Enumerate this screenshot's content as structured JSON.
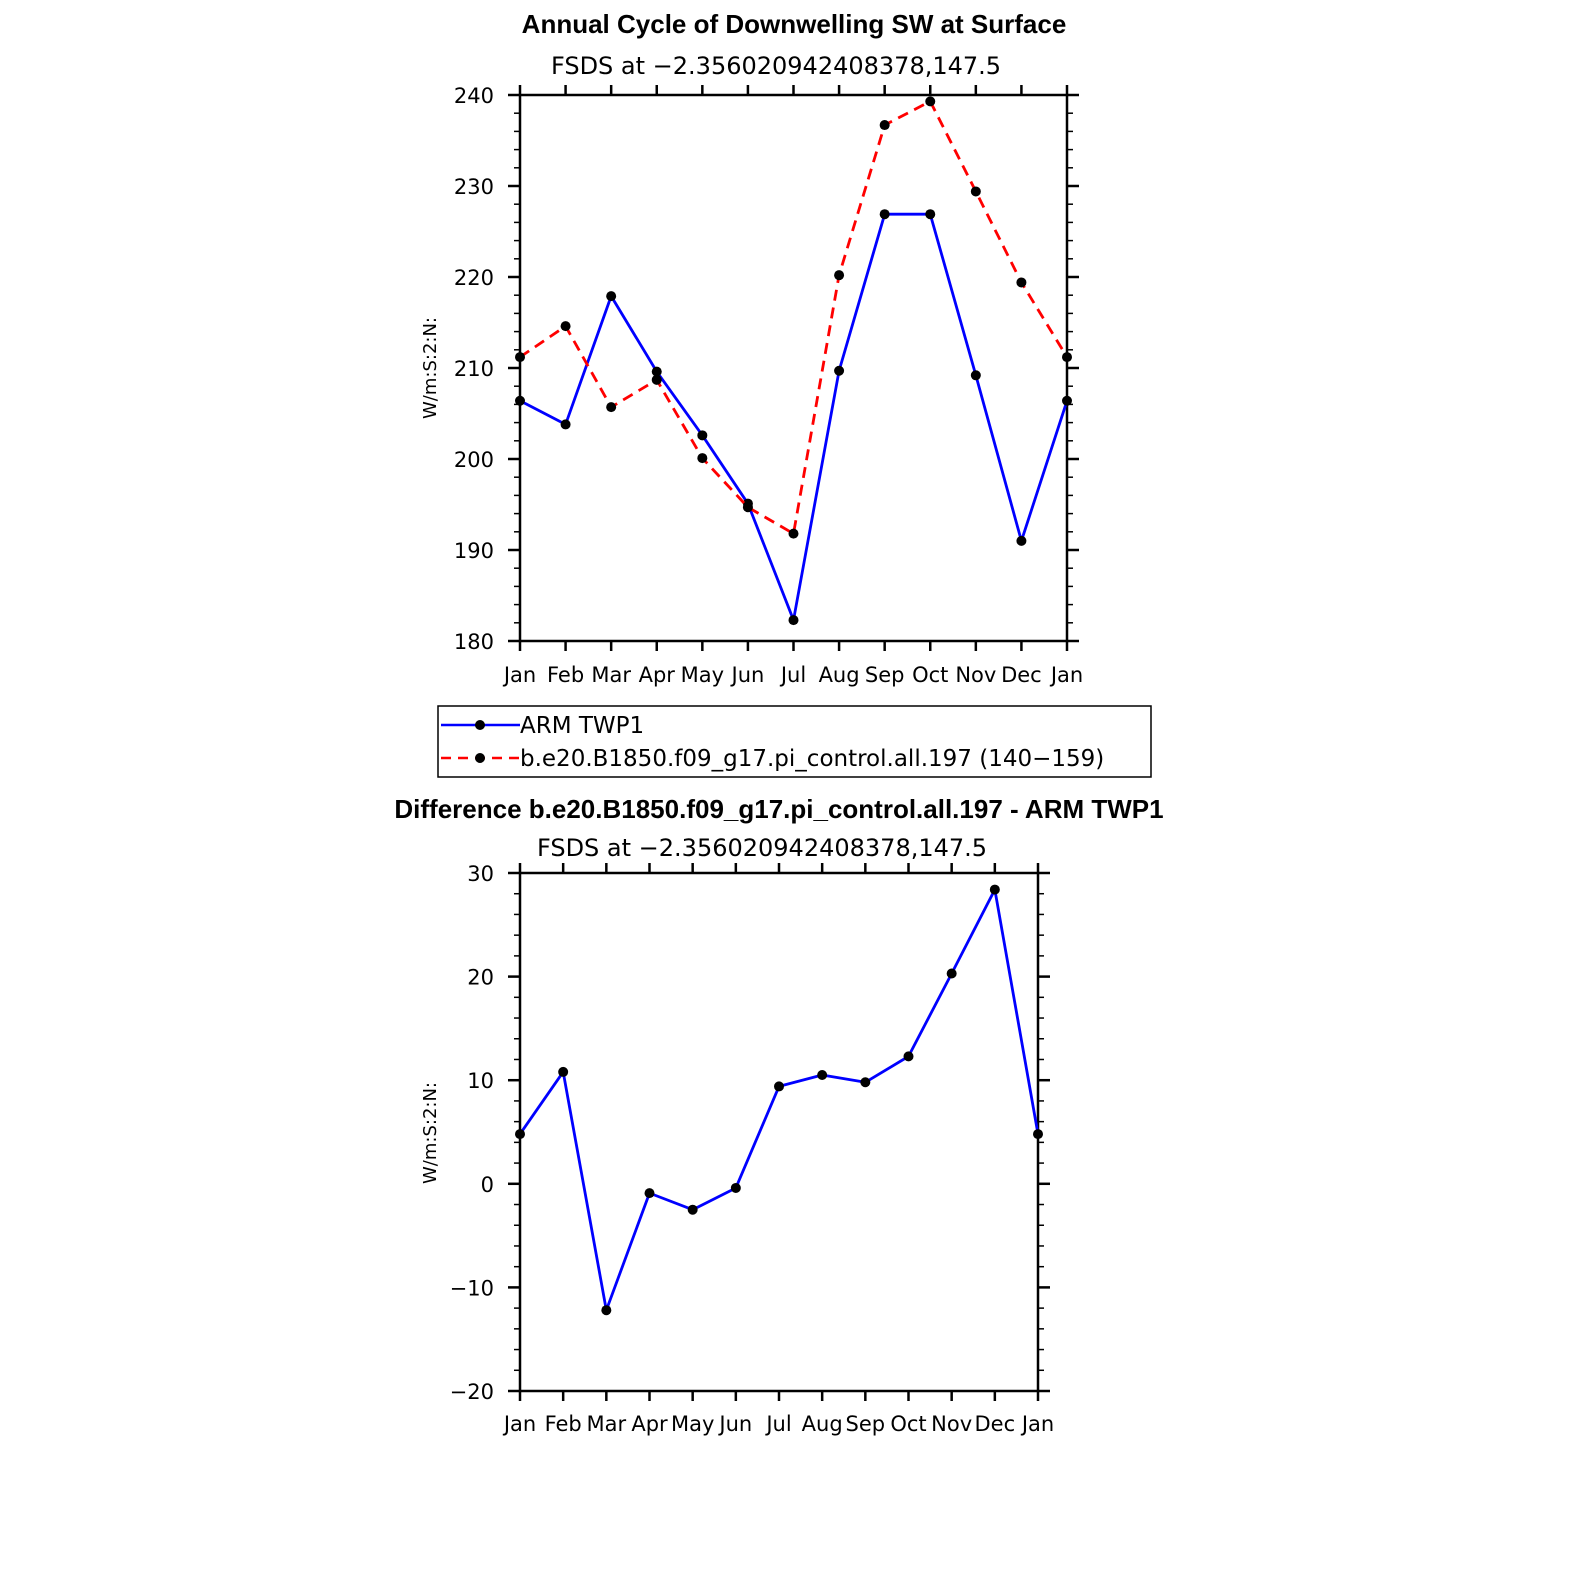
{
  "chart_data": [
    {
      "type": "line",
      "title": "Annual Cycle of Downwelling SW at Surface",
      "subtitle": "FSDS at −2.356020942408378,147.5",
      "ylabel": "W/m:S:2:N:",
      "ylim": [
        180,
        240
      ],
      "yticks": [
        180,
        190,
        200,
        210,
        220,
        230,
        240
      ],
      "ytick_labels": [
        "180",
        "190",
        "200",
        "210",
        "220",
        "230",
        "240"
      ],
      "categories": [
        "Jan",
        "Feb",
        "Mar",
        "Apr",
        "May",
        "Jun",
        "Jul",
        "Aug",
        "Sep",
        "Oct",
        "Nov",
        "Dec",
        "Jan"
      ],
      "series": [
        {
          "name": "ARM TWP1",
          "color": "#0000ff",
          "dash": "solid",
          "values": [
            206.4,
            203.8,
            217.9,
            209.6,
            202.6,
            195.1,
            182.3,
            209.7,
            226.9,
            226.9,
            209.2,
            191.0,
            206.4
          ]
        },
        {
          "name": "b.e20.B1850.f09_g17.pi_control.all.197 (140−159)",
          "color": "#ff0000",
          "dash": "dashed",
          "values": [
            211.2,
            214.6,
            205.7,
            208.7,
            200.1,
            194.7,
            191.8,
            220.2,
            236.7,
            239.3,
            229.4,
            219.4,
            211.2
          ]
        }
      ]
    },
    {
      "type": "line",
      "title": "Difference b.e20.B1850.f09_g17.pi_control.all.197 - ARM TWP1",
      "subtitle": "FSDS at −2.356020942408378,147.5",
      "ylabel": "W/m:S:2:N:",
      "ylim": [
        -20,
        30
      ],
      "yticks": [
        -20,
        -10,
        0,
        10,
        20,
        30
      ],
      "ytick_labels": [
        "−20",
        "−10",
        "0",
        "10",
        "20",
        "30"
      ],
      "categories": [
        "Jan",
        "Feb",
        "Mar",
        "Apr",
        "May",
        "Jun",
        "Jul",
        "Aug",
        "Sep",
        "Oct",
        "Nov",
        "Dec",
        "Jan"
      ],
      "series": [
        {
          "name": "Difference",
          "color": "#0000ff",
          "dash": "solid",
          "values": [
            4.8,
            10.8,
            -12.2,
            -0.9,
            -2.5,
            -0.4,
            9.4,
            10.5,
            9.8,
            12.3,
            20.3,
            28.4,
            4.8
          ]
        }
      ]
    }
  ]
}
